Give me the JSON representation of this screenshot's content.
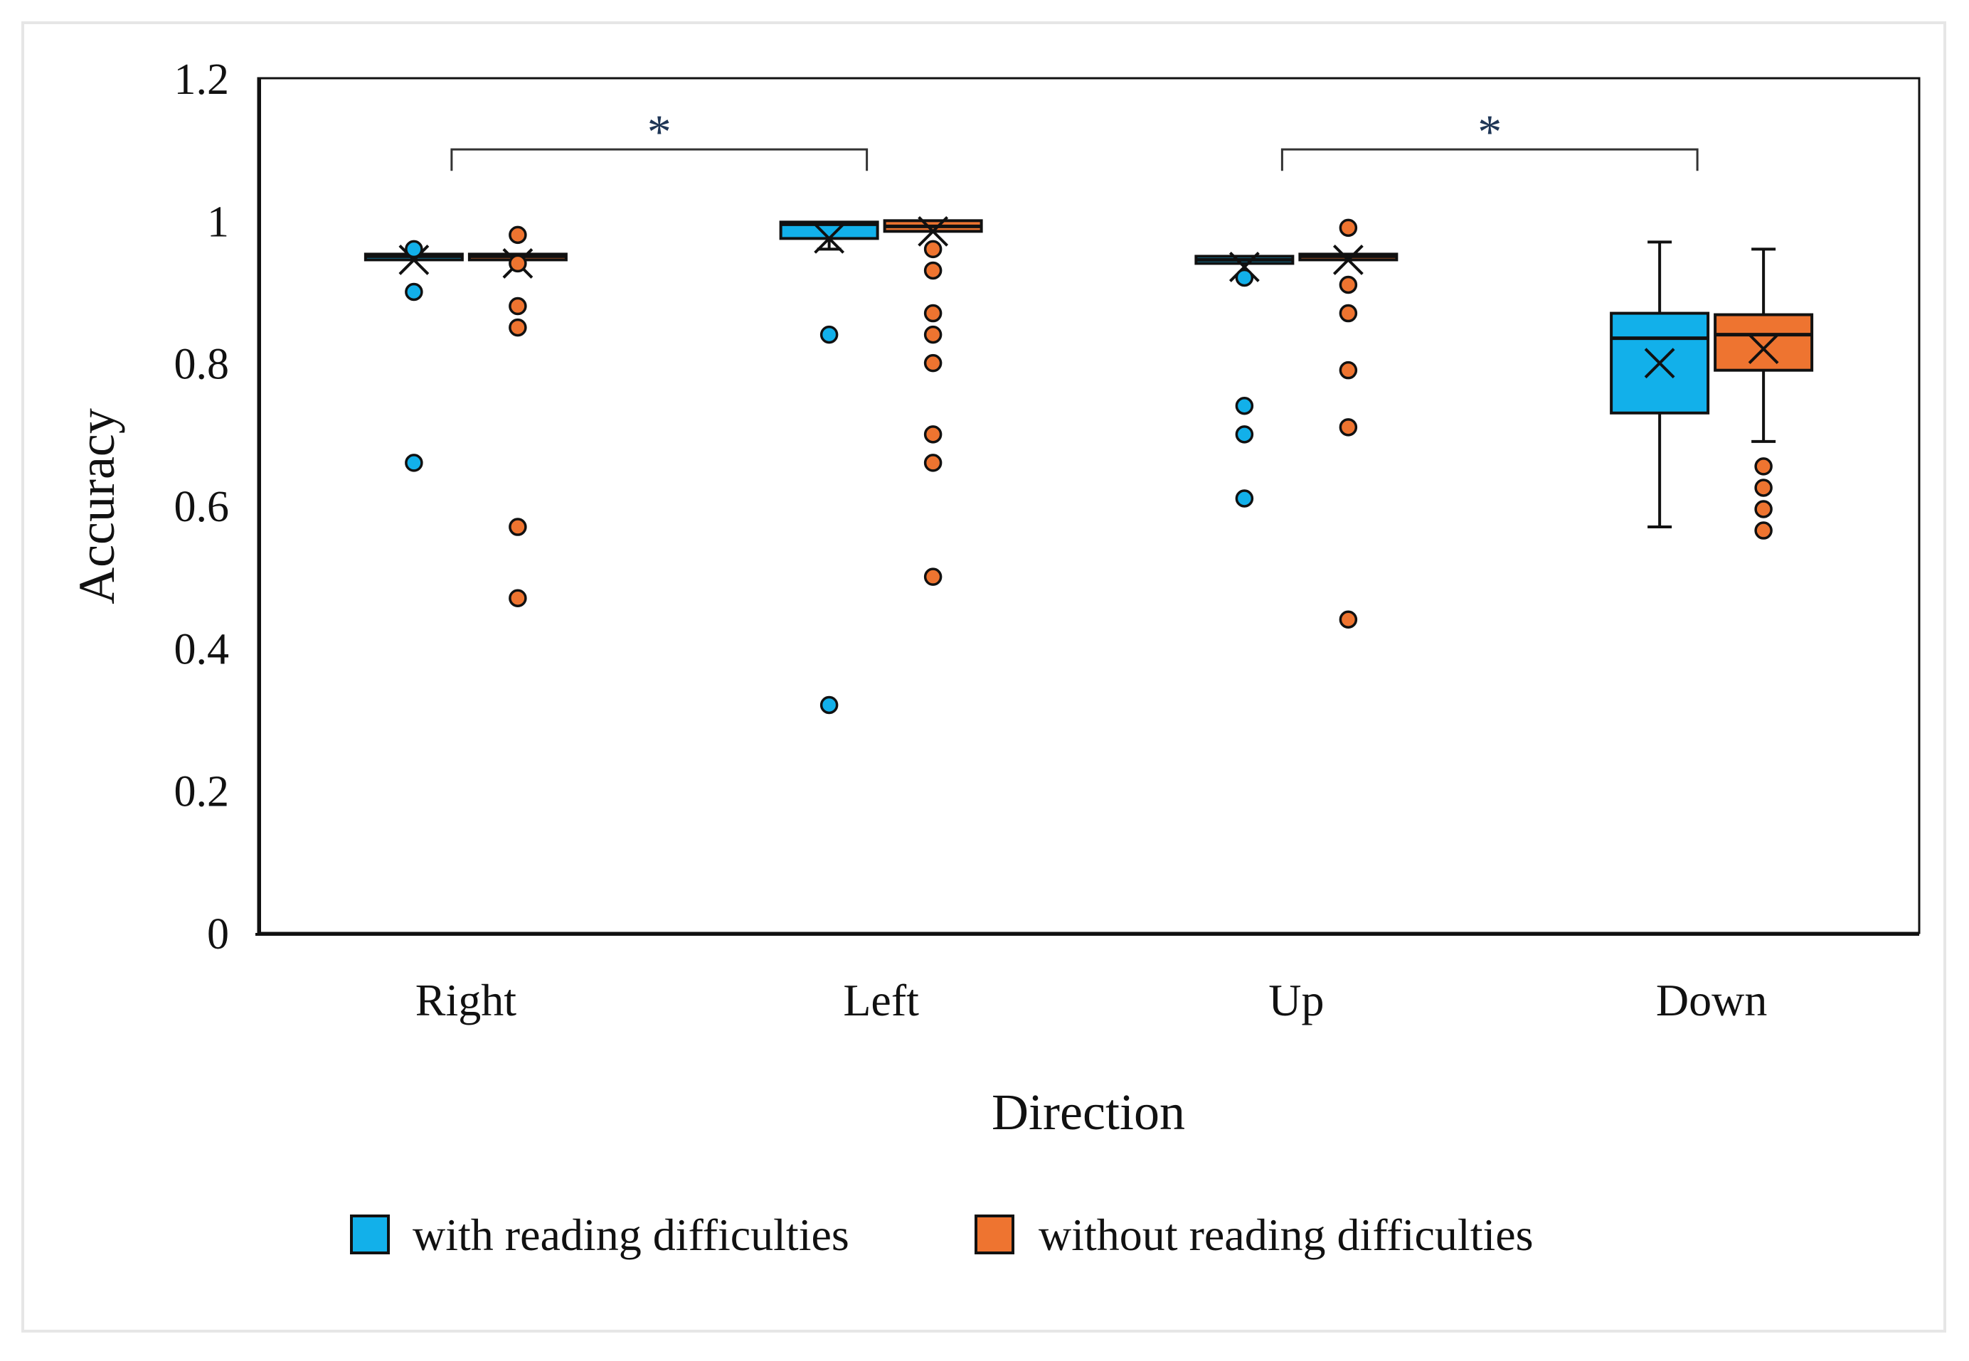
{
  "chart_data": {
    "type": "box",
    "title": "",
    "xlabel": "Direction",
    "ylabel": "Accuracy",
    "ylim": [
      0,
      1.2
    ],
    "yticks": [
      "0",
      "0.2",
      "0.4",
      "0.6",
      "0.8",
      "1",
      "1.2"
    ],
    "categories": [
      "Right",
      "Left",
      "Up",
      "Down"
    ],
    "legend_position": "bottom",
    "colors": {
      "with": "#12b0ea",
      "without": "#ee7430"
    },
    "series": [
      {
        "name": "with reading difficulties",
        "boxes": [
          {
            "q1": 0.945,
            "median": 0.95,
            "q3": 0.953,
            "mean": 0.945,
            "whisker_low": 0.945,
            "whisker_high": 0.953,
            "outliers": [
              0.96,
              0.9,
              0.66
            ]
          },
          {
            "q1": 0.975,
            "median": 0.995,
            "q3": 0.998,
            "mean": 0.975,
            "whisker_low": 0.96,
            "whisker_high": 1.0,
            "outliers": [
              0.84,
              0.32
            ]
          },
          {
            "q1": 0.94,
            "median": 0.945,
            "q3": 0.95,
            "mean": 0.935,
            "whisker_low": 0.94,
            "whisker_high": 0.95,
            "outliers": [
              0.92,
              0.74,
              0.7,
              0.61
            ]
          },
          {
            "q1": 0.73,
            "median": 0.835,
            "q3": 0.87,
            "mean": 0.8,
            "whisker_low": 0.57,
            "whisker_high": 0.97,
            "outliers": []
          }
        ]
      },
      {
        "name": "without reading difficulties",
        "boxes": [
          {
            "q1": 0.945,
            "median": 0.95,
            "q3": 0.953,
            "mean": 0.94,
            "whisker_low": 0.945,
            "whisker_high": 0.953,
            "outliers": [
              0.98,
              0.94,
              0.88,
              0.85,
              0.57,
              0.47
            ]
          },
          {
            "q1": 0.985,
            "median": 0.992,
            "q3": 1.0,
            "mean": 0.985,
            "whisker_low": 0.98,
            "whisker_high": 1.0,
            "outliers": [
              0.96,
              0.93,
              0.87,
              0.84,
              0.8,
              0.7,
              0.66,
              0.5
            ]
          },
          {
            "q1": 0.945,
            "median": 0.95,
            "q3": 0.953,
            "mean": 0.945,
            "whisker_low": 0.945,
            "whisker_high": 0.953,
            "outliers": [
              0.99,
              0.91,
              0.87,
              0.79,
              0.71,
              0.44
            ]
          },
          {
            "q1": 0.79,
            "median": 0.84,
            "q3": 0.868,
            "mean": 0.82,
            "whisker_low": 0.69,
            "whisker_high": 0.96,
            "outliers": [
              0.655,
              0.625,
              0.595,
              0.565
            ]
          }
        ]
      }
    ],
    "significance": [
      {
        "from": "Right",
        "to": "Left",
        "label": "*"
      },
      {
        "from": "Up",
        "to": "Down",
        "label": "*"
      }
    ]
  }
}
